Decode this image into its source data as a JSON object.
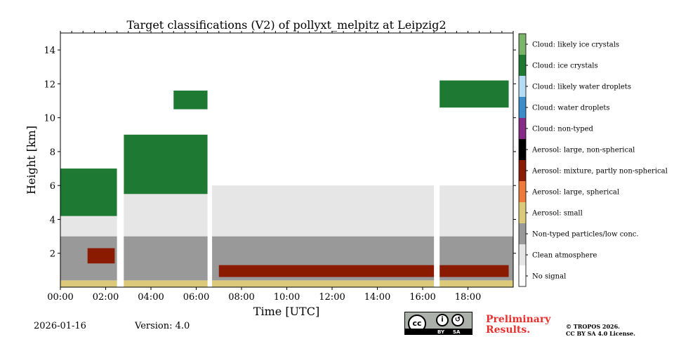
{
  "chart_data": {
    "type": "heatmap",
    "title": "Target classifications (V2) of pollyxt_melpitz at Leipzig2",
    "xlabel": "Time [UTC]",
    "ylabel": "Height [km]",
    "xlim": [
      0,
      20
    ],
    "ylim": [
      0,
      15
    ],
    "x_ticks": [
      "00:00",
      "02:00",
      "04:00",
      "06:00",
      "08:00",
      "10:00",
      "12:00",
      "14:00",
      "16:00",
      "18:00"
    ],
    "x_tick_values": [
      0,
      2,
      4,
      6,
      8,
      10,
      12,
      14,
      16,
      18
    ],
    "y_ticks": [
      "2",
      "4",
      "6",
      "8",
      "10",
      "12",
      "14"
    ],
    "y_tick_values": [
      2,
      4,
      6,
      8,
      10,
      12,
      14
    ],
    "classes": [
      {
        "label": "No signal",
        "color": "#ffffff"
      },
      {
        "label": "Clean atmosphere",
        "color": "#e6e6e6"
      },
      {
        "label": "Non-typed particles/low conc.",
        "color": "#999999"
      },
      {
        "label": "Aerosol: small",
        "color": "#dcca7a"
      },
      {
        "label": "Aerosol: large, spherical",
        "color": "#ee7a3e"
      },
      {
        "label": "Aerosol: mixture, partly non-spherical",
        "color": "#8a1a00"
      },
      {
        "label": "Aerosol: large, non-spherical",
        "color": "#000000"
      },
      {
        "label": "Cloud: non-typed",
        "color": "#862c86"
      },
      {
        "label": "Cloud: water droplets",
        "color": "#3a8dc9"
      },
      {
        "label": "Cloud: likely water droplets",
        "color": "#b5dcf5"
      },
      {
        "label": "Cloud: ice crystals",
        "color": "#1e7a32"
      },
      {
        "label": "Cloud: likely ice crystals",
        "color": "#7ab36a"
      }
    ],
    "no_signal_gaps_utc": [
      [
        2.5,
        2.8
      ],
      [
        6.5,
        6.7
      ],
      [
        16.5,
        16.75
      ]
    ],
    "layers": [
      {
        "class": "Aerosol: small",
        "t_start": 0,
        "t_end": 20,
        "h_bottom": 0,
        "h_top": 0.4
      },
      {
        "class": "Non-typed particles/low conc.",
        "t_start": 0,
        "t_end": 20,
        "h_bottom": 0.4,
        "h_top": 3.0
      },
      {
        "class": "Clean atmosphere",
        "t_start": 0,
        "t_end": 20,
        "h_bottom": 3.0,
        "h_top": 6.0
      },
      {
        "class": "Aerosol: mixture, partly non-spherical",
        "t_start": 7.0,
        "t_end": 19.8,
        "h_bottom": 0.6,
        "h_top": 1.3
      },
      {
        "class": "Aerosol: mixture, partly non-spherical",
        "t_start": 1.2,
        "t_end": 2.4,
        "h_bottom": 1.4,
        "h_top": 2.3
      },
      {
        "class": "Cloud: ice crystals",
        "t_start": 0,
        "t_end": 2.5,
        "h_bottom": 4.2,
        "h_top": 7.0
      },
      {
        "class": "Cloud: ice crystals",
        "t_start": 2.8,
        "t_end": 6.5,
        "h_bottom": 5.5,
        "h_top": 9.0
      },
      {
        "class": "Cloud: ice crystals",
        "t_start": 5.0,
        "t_end": 6.5,
        "h_bottom": 10.5,
        "h_top": 11.6
      },
      {
        "class": "Cloud: ice crystals",
        "t_start": 16.7,
        "t_end": 19.8,
        "h_bottom": 10.6,
        "h_top": 12.2
      }
    ]
  },
  "footer": {
    "date": "2026-01-16",
    "version": "Version: 4.0",
    "license_badge": {
      "cc": "cc",
      "by": "BY",
      "sa": "SA"
    },
    "preliminary_line1": "Preliminary",
    "preliminary_line2": "Results.",
    "copyright_line1": "© TROPOS 2026.",
    "copyright_line2": "CC BY SA 4.0 License."
  }
}
